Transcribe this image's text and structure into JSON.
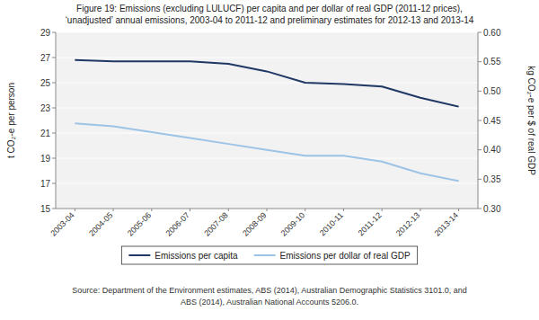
{
  "chart_data": {
    "type": "line",
    "title": "Figure 19: Emissions (excluding LULUCF) per capita and per dollar of real GDP (2011-12 prices),",
    "subtitle": "‘unadjusted’ annual emissions, 2003-04 to 2011-12 and preliminary estimates for 2012-13 and 2013-14",
    "categories": [
      "2003-04",
      "2004-05",
      "2005-06",
      "2006-07",
      "2007-08",
      "2008-09",
      "2009-10",
      "2010-11",
      "2011-12",
      "2012-13",
      "2013-14"
    ],
    "series": [
      {
        "name": "Emissions per capita",
        "color": "#1F3864",
        "values": [
          26.8,
          26.7,
          26.7,
          26.7,
          26.5,
          25.9,
          25.0,
          24.9,
          24.7,
          23.8,
          23.1
        ]
      },
      {
        "name": "Emissions per dollar of real GDP",
        "color": "#9DC3E6",
        "axis": "y2",
        "values": [
          0.445,
          0.44,
          0.43,
          0.42,
          0.41,
          0.4,
          0.39,
          0.39,
          0.38,
          0.36,
          0.347
        ]
      }
    ],
    "ylim": [
      15,
      29
    ],
    "yticks": [
      15,
      17,
      19,
      21,
      23,
      25,
      27,
      29
    ],
    "y2lim": [
      0.3,
      0.6
    ],
    "y2ticks": [
      {
        "value": 0.3,
        "label": "0.30"
      },
      0.35,
      {
        "value": 0.4,
        "label": "0.40"
      },
      0.45,
      {
        "value": 0.5,
        "label": "0.50"
      },
      0.55,
      {
        "value": 0.6,
        "label": "0.60"
      }
    ],
    "ylabel": "t CO₂-e per person",
    "y2label": "kg CO₂-e per $ of real GDP",
    "grid": true,
    "legend": "bottom",
    "annotations": [
      "Source: Department of the Environment estimates, ABS (2014), Australian Demographic Statistics 3101.0, and",
      "ABS (2014), Australian National Accounts 5206.0."
    ]
  }
}
